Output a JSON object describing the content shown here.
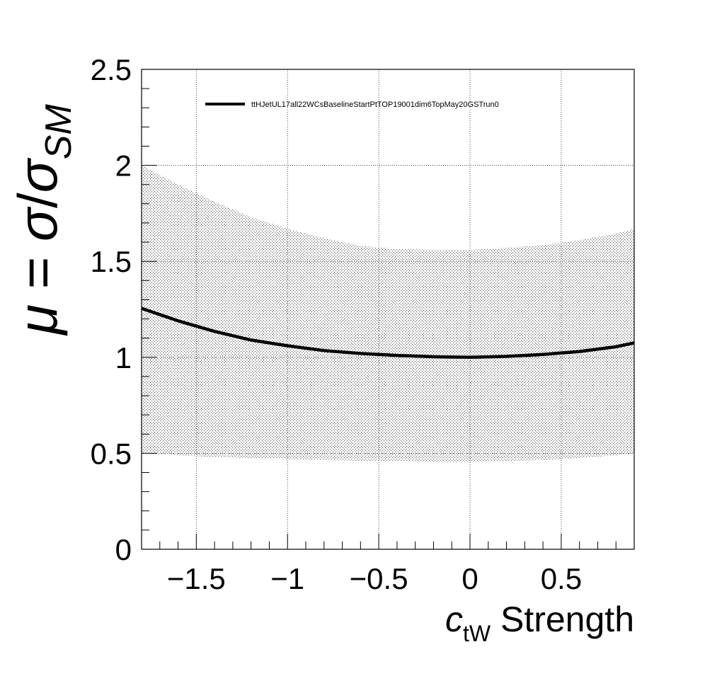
{
  "chart_data": {
    "type": "line",
    "title": "",
    "xlabel": {
      "symbol": "c",
      "subscript": "tW",
      "suffix": " Strength"
    },
    "ylabel": {
      "mu": "μ",
      "equals": " = ",
      "sigma": "σ",
      "slash": "/",
      "sigma2": "σ",
      "subscript": "SM"
    },
    "xlim": [
      -1.8,
      0.9
    ],
    "ylim": [
      0,
      2.5
    ],
    "x_ticks": [
      -1.5,
      -1,
      -0.5,
      0,
      0.5
    ],
    "x_tick_labels": [
      "−1.5",
      "−1",
      "−0.5",
      "0",
      "0.5"
    ],
    "y_ticks": [
      0,
      0.5,
      1,
      1.5,
      2,
      2.5
    ],
    "y_tick_labels": [
      "0",
      "0.5",
      "1",
      "1.5",
      "2",
      "2.5"
    ],
    "grid": true,
    "legend": {
      "placement": "top-left",
      "entries": [
        "ttHJetUL17all22WCsBaselineStartPtTOP19001dim6TopMay20GSTrun0"
      ]
    },
    "series": [
      {
        "name": "ttHJetUL17all22WCsBaselineStartPtTOP19001dim6TopMay20GSTrun0",
        "color": "#000000",
        "x": [
          -1.8,
          -1.6,
          -1.4,
          -1.2,
          -1.0,
          -0.8,
          -0.6,
          -0.4,
          -0.2,
          0.0,
          0.2,
          0.4,
          0.6,
          0.8,
          0.9
        ],
        "y": [
          1.255,
          1.19,
          1.135,
          1.09,
          1.06,
          1.035,
          1.02,
          1.01,
          1.003,
          1.0,
          1.005,
          1.015,
          1.03,
          1.055,
          1.075
        ],
        "band_lower": [
          0.5,
          0.49,
          0.48,
          0.475,
          0.47,
          0.465,
          0.46,
          0.458,
          0.455,
          0.455,
          0.458,
          0.465,
          0.475,
          0.49,
          0.5
        ],
        "band_upper": [
          2.0,
          1.9,
          1.81,
          1.73,
          1.67,
          1.62,
          1.58,
          1.565,
          1.56,
          1.56,
          1.57,
          1.585,
          1.61,
          1.645,
          1.67
        ]
      }
    ]
  }
}
